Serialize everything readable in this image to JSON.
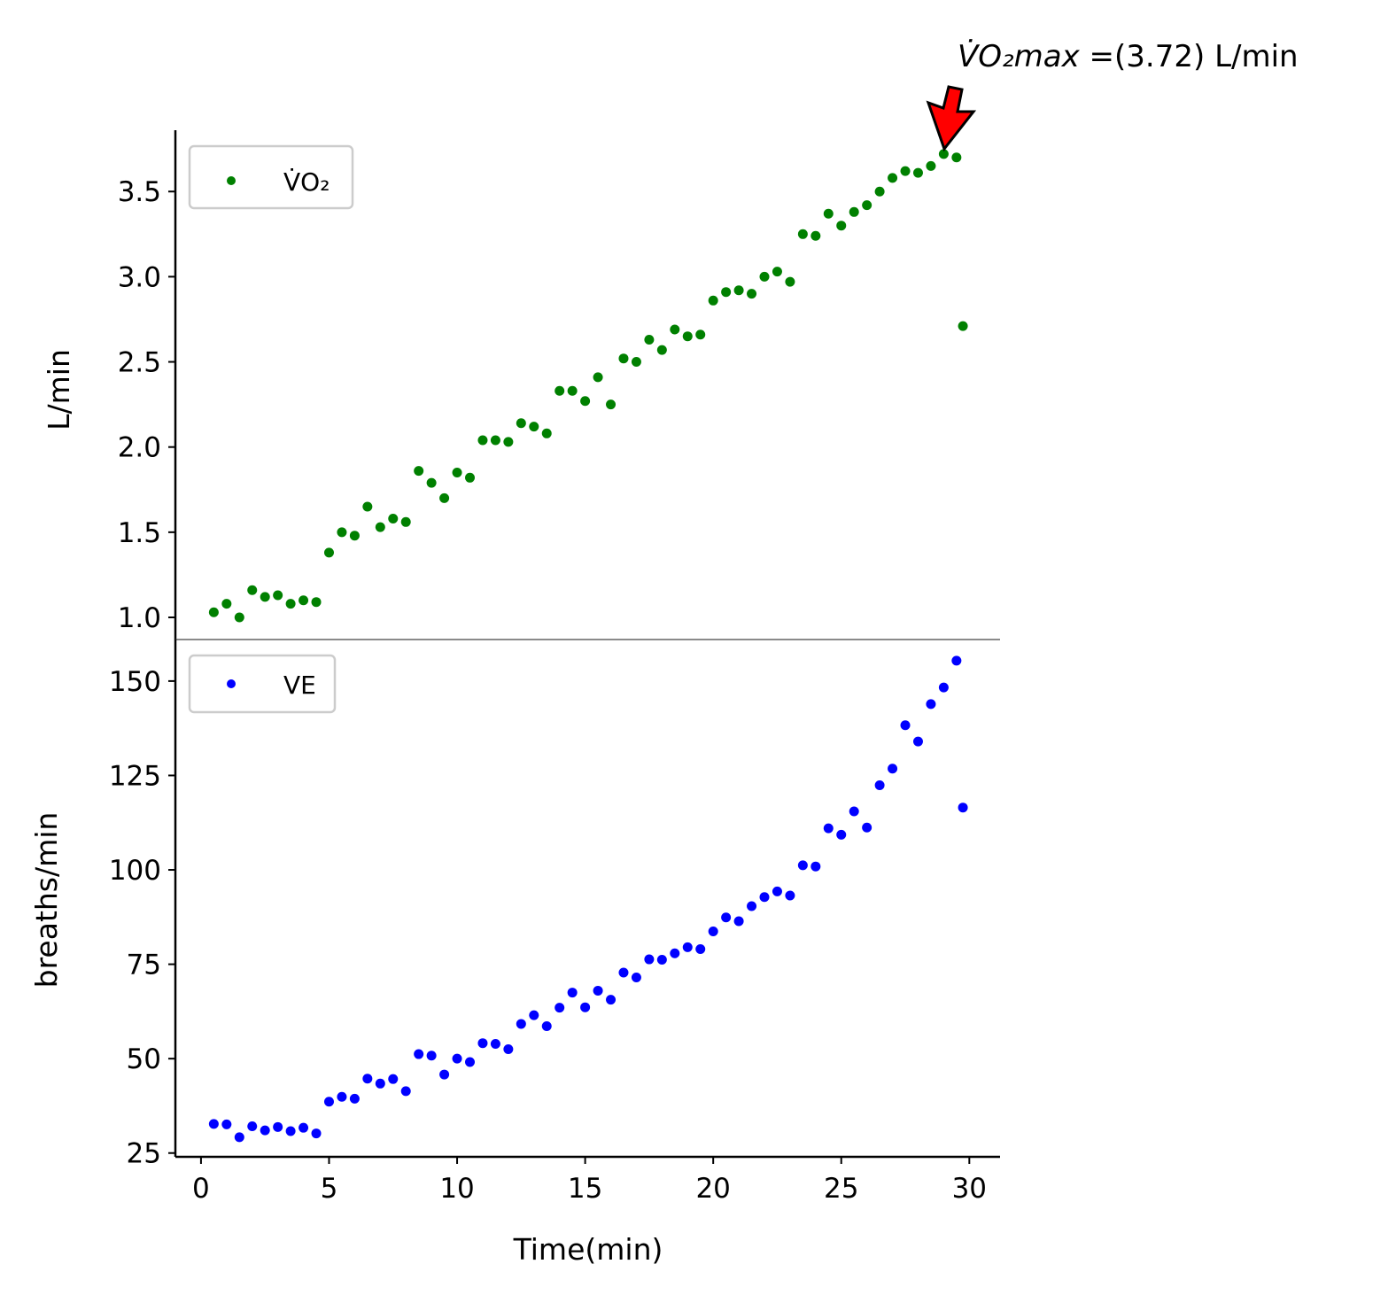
{
  "chart_data": [
    {
      "type": "scatter",
      "id": "vo2",
      "ylabel": "L/min",
      "xlabel": "",
      "xlim": [
        -1,
        31.2
      ],
      "ylim": [
        0.87,
        3.86
      ],
      "yticks": [
        1.0,
        1.5,
        2.0,
        2.5,
        3.0,
        3.5
      ],
      "ytick_labels": [
        "1.0",
        "1.5",
        "2.0",
        "2.5",
        "3.0",
        "3.5"
      ],
      "legend": {
        "label": "V̇O₂",
        "color": "#008000",
        "position": "upper-left"
      },
      "series": [
        {
          "name": "V̇O₂",
          "color": "#008000",
          "x": [
            0.5,
            1.0,
            1.5,
            2.0,
            2.5,
            3.0,
            3.5,
            4.0,
            4.5,
            5.0,
            5.5,
            6.0,
            6.5,
            7.0,
            7.5,
            8.0,
            8.5,
            9.0,
            9.5,
            10.0,
            10.5,
            11.0,
            11.5,
            12.0,
            12.5,
            13.0,
            13.5,
            14.0,
            14.5,
            15.0,
            15.5,
            16.0,
            16.5,
            17.0,
            17.5,
            18.0,
            18.5,
            19.0,
            19.5,
            20.0,
            20.5,
            21.0,
            21.5,
            22.0,
            22.5,
            23.0,
            23.5,
            24.0,
            24.5,
            25.0,
            25.5,
            26.0,
            26.5,
            27.0,
            27.5,
            28.0,
            28.5,
            29.0,
            29.5,
            29.75
          ],
          "y": [
            1.03,
            1.08,
            1.0,
            1.16,
            1.12,
            1.13,
            1.08,
            1.1,
            1.09,
            1.38,
            1.5,
            1.48,
            1.65,
            1.53,
            1.58,
            1.56,
            1.86,
            1.79,
            1.7,
            1.85,
            1.82,
            2.04,
            2.04,
            2.03,
            2.14,
            2.12,
            2.08,
            2.33,
            2.33,
            2.27,
            2.41,
            2.25,
            2.52,
            2.5,
            2.63,
            2.57,
            2.69,
            2.65,
            2.66,
            2.86,
            2.91,
            2.92,
            2.9,
            3.0,
            3.03,
            2.97,
            3.25,
            3.24,
            3.37,
            3.3,
            3.38,
            3.42,
            3.5,
            3.58,
            3.62,
            3.61,
            3.65,
            3.72,
            3.7,
            2.71
          ]
        }
      ],
      "annotation": {
        "text_prefix": "V̇O₂max",
        "text_suffix": " =(3.72) L/min",
        "x": 29.0,
        "y": 3.72,
        "arrow_color": "#ff0000"
      }
    },
    {
      "type": "scatter",
      "id": "ve",
      "ylabel": "breaths/min",
      "xlabel": "Time(min)",
      "xlim": [
        -1,
        31.2
      ],
      "ylim": [
        24,
        161
      ],
      "xticks": [
        0,
        5,
        10,
        15,
        20,
        25,
        30
      ],
      "xtick_labels": [
        "0",
        "5",
        "10",
        "15",
        "20",
        "25",
        "30"
      ],
      "yticks": [
        25,
        50,
        75,
        100,
        125,
        150
      ],
      "ytick_labels": [
        "25",
        "50",
        "75",
        "100",
        "125",
        "150"
      ],
      "legend": {
        "label": "VE",
        "color": "#0000ff",
        "position": "upper-left"
      },
      "series": [
        {
          "name": "VE",
          "color": "#0000ff",
          "x": [
            0.5,
            1.0,
            1.5,
            2.0,
            2.5,
            3.0,
            3.5,
            4.0,
            4.5,
            5.0,
            5.5,
            6.0,
            6.5,
            7.0,
            7.5,
            8.0,
            8.5,
            9.0,
            9.5,
            10.0,
            10.5,
            11.0,
            11.5,
            12.0,
            12.5,
            13.0,
            13.5,
            14.0,
            14.5,
            15.0,
            15.5,
            16.0,
            16.5,
            17.0,
            17.5,
            18.0,
            18.5,
            19.0,
            19.5,
            20.0,
            20.5,
            21.0,
            21.5,
            22.0,
            22.5,
            23.0,
            23.5,
            24.0,
            24.5,
            25.0,
            25.5,
            26.0,
            26.5,
            27.0,
            27.5,
            28.0,
            28.5,
            29.0,
            29.5,
            29.75
          ],
          "y": [
            32.7,
            32.6,
            29.2,
            32.1,
            31.0,
            31.9,
            30.8,
            31.7,
            30.2,
            38.6,
            39.9,
            39.4,
            44.7,
            43.4,
            44.6,
            41.4,
            51.2,
            50.8,
            45.8,
            50.0,
            49.1,
            54.1,
            53.9,
            52.5,
            59.2,
            61.5,
            58.6,
            63.5,
            67.5,
            63.6,
            68.0,
            65.6,
            72.8,
            71.5,
            76.3,
            76.2,
            77.9,
            79.5,
            79.0,
            83.7,
            87.4,
            86.4,
            90.4,
            92.8,
            94.3,
            93.2,
            101.2,
            100.9,
            111.0,
            109.3,
            115.5,
            111.2,
            122.4,
            126.8,
            138.3,
            134.0,
            143.9,
            148.3,
            155.4,
            116.5
          ]
        }
      ]
    }
  ]
}
